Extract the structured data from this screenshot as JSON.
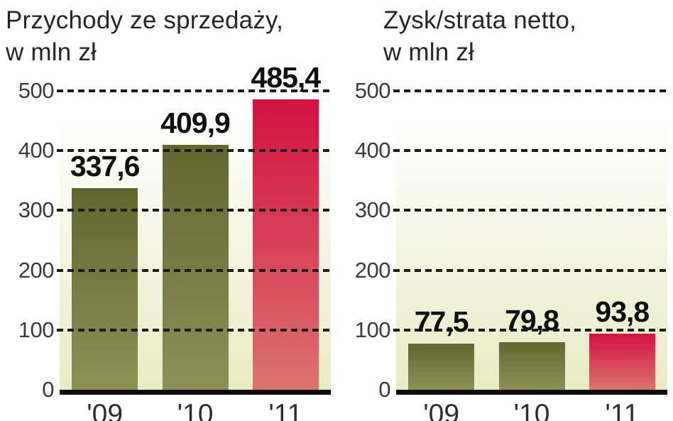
{
  "page": {
    "background": "#ffffff",
    "language": "pl"
  },
  "colors": {
    "olive_top": "#61672f",
    "olive_bottom": "#8d9156",
    "red_top": "#d41240",
    "red_bottom": "#da736f",
    "plot_bg_top": "#ffffff",
    "plot_bg_bottom": "#e8ebc3",
    "gridline": "#1b1b1b",
    "baseline": "#0d0d0d",
    "value_label": "#0f0f0f",
    "axis_label": "#3a3a3a",
    "title": "#262626"
  },
  "chart_data": [
    {
      "type": "bar",
      "title": "Przychody ze sprzedaży, w mln zł",
      "title_line1": "Przychody ze sprzedaży,",
      "title_line2": "w mln zł",
      "categories": [
        "'09",
        "'10",
        "'11"
      ],
      "values": [
        337.6,
        409.9,
        485.4
      ],
      "value_labels": [
        "337,6",
        "409,9",
        "485,4"
      ],
      "bar_colors": [
        "olive",
        "olive",
        "red"
      ],
      "ylim": [
        0,
        500
      ],
      "yticks": [
        0,
        100,
        200,
        300,
        400,
        500
      ],
      "grid": "horizontal-dashed",
      "legend": "none"
    },
    {
      "type": "bar",
      "title": "Zysk/strata netto, w mln zł",
      "title_line1": "Zysk/strata netto,",
      "title_line2": "w mln zł",
      "categories": [
        "'09",
        "'10",
        "'11"
      ],
      "values": [
        77.5,
        79.8,
        93.8
      ],
      "value_labels": [
        "77,5",
        "79,8",
        "93,8"
      ],
      "bar_colors": [
        "olive",
        "olive",
        "red"
      ],
      "ylim": [
        0,
        500
      ],
      "yticks": [
        0,
        100,
        200,
        300,
        400,
        500
      ],
      "grid": "horizontal-dashed",
      "legend": "none"
    }
  ]
}
